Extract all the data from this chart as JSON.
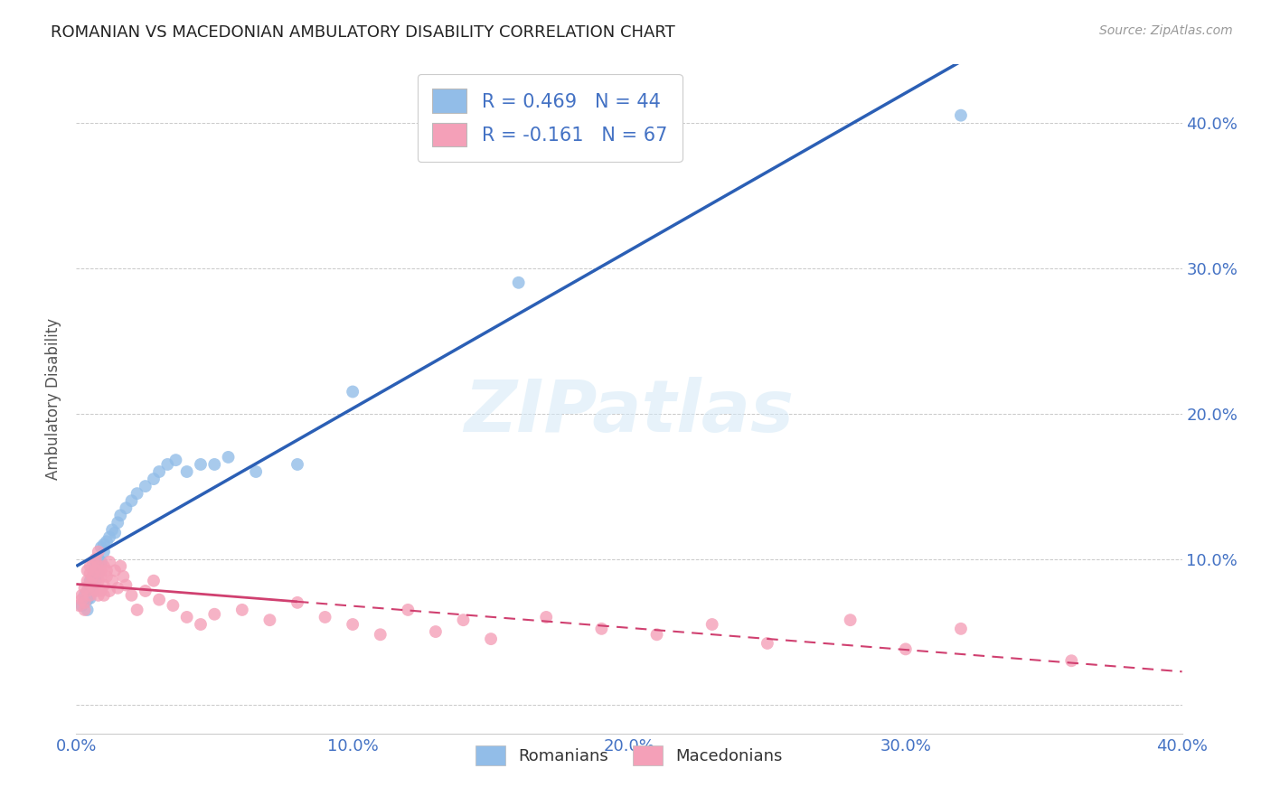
{
  "title": "ROMANIAN VS MACEDONIAN AMBULATORY DISABILITY CORRELATION CHART",
  "source": "Source: ZipAtlas.com",
  "ylabel": "Ambulatory Disability",
  "xlim": [
    0.0,
    0.4
  ],
  "ylim": [
    -0.02,
    0.44
  ],
  "ytick_vals": [
    0.0,
    0.1,
    0.2,
    0.3,
    0.4
  ],
  "ytick_labels_right": [
    "",
    "10.0%",
    "20.0%",
    "30.0%",
    "40.0%"
  ],
  "xtick_vals": [
    0.0,
    0.1,
    0.2,
    0.3,
    0.4
  ],
  "xtick_labels": [
    "0.0%",
    "10.0%",
    "20.0%",
    "30.0%",
    "40.0%"
  ],
  "romanian_color": "#92BDE8",
  "macedonian_color": "#F4A0B8",
  "romanian_line_color": "#2B5FB5",
  "macedonian_line_color": "#D04070",
  "R_romanian": 0.469,
  "N_romanian": 44,
  "R_macedonian": -0.161,
  "N_macedonian": 67,
  "legend_label_romanian": "Romanians",
  "legend_label_macedonian": "Macedonians",
  "watermark": "ZIPatlas",
  "background_color": "#ffffff",
  "grid_color": "#bbbbbb",
  "title_color": "#222222",
  "axis_label_color": "#555555",
  "tick_label_color": "#4472c4",
  "romanian_x": [
    0.002,
    0.003,
    0.003,
    0.004,
    0.004,
    0.004,
    0.005,
    0.005,
    0.005,
    0.006,
    0.006,
    0.006,
    0.007,
    0.007,
    0.007,
    0.008,
    0.008,
    0.009,
    0.009,
    0.01,
    0.01,
    0.011,
    0.012,
    0.013,
    0.014,
    0.015,
    0.016,
    0.018,
    0.02,
    0.022,
    0.025,
    0.028,
    0.03,
    0.033,
    0.036,
    0.04,
    0.045,
    0.05,
    0.055,
    0.065,
    0.08,
    0.1,
    0.16,
    0.32
  ],
  "romanian_y": [
    0.068,
    0.07,
    0.075,
    0.072,
    0.078,
    0.065,
    0.08,
    0.085,
    0.073,
    0.088,
    0.082,
    0.078,
    0.092,
    0.085,
    0.095,
    0.1,
    0.09,
    0.098,
    0.108,
    0.105,
    0.11,
    0.112,
    0.115,
    0.12,
    0.118,
    0.125,
    0.13,
    0.135,
    0.14,
    0.145,
    0.15,
    0.155,
    0.16,
    0.165,
    0.168,
    0.16,
    0.165,
    0.165,
    0.17,
    0.16,
    0.165,
    0.215,
    0.29,
    0.405
  ],
  "macedonian_x": [
    0.001,
    0.002,
    0.002,
    0.003,
    0.003,
    0.003,
    0.004,
    0.004,
    0.004,
    0.005,
    0.005,
    0.005,
    0.005,
    0.006,
    0.006,
    0.006,
    0.007,
    0.007,
    0.007,
    0.008,
    0.008,
    0.008,
    0.008,
    0.009,
    0.009,
    0.009,
    0.01,
    0.01,
    0.01,
    0.011,
    0.011,
    0.012,
    0.012,
    0.013,
    0.014,
    0.015,
    0.016,
    0.017,
    0.018,
    0.02,
    0.022,
    0.025,
    0.028,
    0.03,
    0.035,
    0.04,
    0.045,
    0.05,
    0.06,
    0.07,
    0.08,
    0.09,
    0.1,
    0.11,
    0.12,
    0.13,
    0.14,
    0.15,
    0.17,
    0.19,
    0.21,
    0.23,
    0.25,
    0.28,
    0.3,
    0.32,
    0.36
  ],
  "macedonian_y": [
    0.068,
    0.072,
    0.075,
    0.065,
    0.07,
    0.08,
    0.085,
    0.078,
    0.092,
    0.083,
    0.09,
    0.095,
    0.075,
    0.082,
    0.098,
    0.088,
    0.1,
    0.092,
    0.078,
    0.085,
    0.095,
    0.105,
    0.075,
    0.092,
    0.088,
    0.078,
    0.095,
    0.082,
    0.075,
    0.088,
    0.092,
    0.098,
    0.078,
    0.085,
    0.092,
    0.08,
    0.095,
    0.088,
    0.082,
    0.075,
    0.065,
    0.078,
    0.085,
    0.072,
    0.068,
    0.06,
    0.055,
    0.062,
    0.065,
    0.058,
    0.07,
    0.06,
    0.055,
    0.048,
    0.065,
    0.05,
    0.058,
    0.045,
    0.06,
    0.052,
    0.048,
    0.055,
    0.042,
    0.058,
    0.038,
    0.052,
    0.03
  ]
}
